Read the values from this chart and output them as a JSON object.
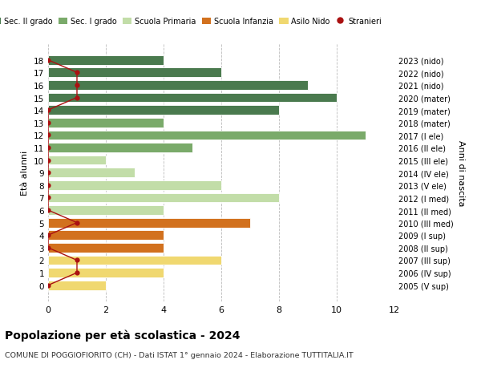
{
  "ages": [
    18,
    17,
    16,
    15,
    14,
    13,
    12,
    11,
    10,
    9,
    8,
    7,
    6,
    5,
    4,
    3,
    2,
    1,
    0
  ],
  "right_labels": [
    "2005 (V sup)",
    "2006 (IV sup)",
    "2007 (III sup)",
    "2008 (II sup)",
    "2009 (I sup)",
    "2010 (III med)",
    "2011 (II med)",
    "2012 (I med)",
    "2013 (V ele)",
    "2014 (IV ele)",
    "2015 (III ele)",
    "2016 (II ele)",
    "2017 (I ele)",
    "2018 (mater)",
    "2019 (mater)",
    "2020 (mater)",
    "2021 (nido)",
    "2022 (nido)",
    "2023 (nido)"
  ],
  "bar_values": [
    4,
    6,
    9,
    10,
    8,
    4,
    11,
    5,
    2,
    3,
    6,
    8,
    4,
    7,
    4,
    4,
    6,
    4,
    2
  ],
  "bar_colors": [
    "#4a7a4e",
    "#4a7a4e",
    "#4a7a4e",
    "#4a7a4e",
    "#4a7a4e",
    "#7aaa6a",
    "#7aaa6a",
    "#7aaa6a",
    "#c2dda8",
    "#c2dda8",
    "#c2dda8",
    "#c2dda8",
    "#c2dda8",
    "#d2711e",
    "#d2711e",
    "#d2711e",
    "#f0d870",
    "#f0d870",
    "#f0d870"
  ],
  "stranieri_x": [
    0,
    1,
    1,
    1,
    0,
    0,
    0,
    0,
    0,
    0,
    0,
    0,
    0,
    1,
    0,
    0,
    1,
    1,
    0
  ],
  "stranieri_color": "#aa1111",
  "title": "Popolazione per età scolastica - 2024",
  "subtitle": "COMUNE DI POGGIOFIORITO (CH) - Dati ISTAT 1° gennaio 2024 - Elaborazione TUTTITALIA.IT",
  "ylabel_left": "Età alunni",
  "ylabel_right": "Anni di nascita",
  "xlim": [
    0,
    12
  ],
  "xticks": [
    0,
    2,
    4,
    6,
    8,
    10,
    12
  ],
  "legend_items": [
    {
      "label": "Sec. II grado",
      "color": "#4a7a4e"
    },
    {
      "label": "Sec. I grado",
      "color": "#7aaa6a"
    },
    {
      "label": "Scuola Primaria",
      "color": "#c2dda8"
    },
    {
      "label": "Scuola Infanzia",
      "color": "#d2711e"
    },
    {
      "label": "Asilo Nido",
      "color": "#f0d870"
    },
    {
      "label": "Stranieri",
      "color": "#aa1111"
    }
  ],
  "bar_height": 0.75,
  "bg_color": "#ffffff",
  "grid_color": "#bbbbbb"
}
